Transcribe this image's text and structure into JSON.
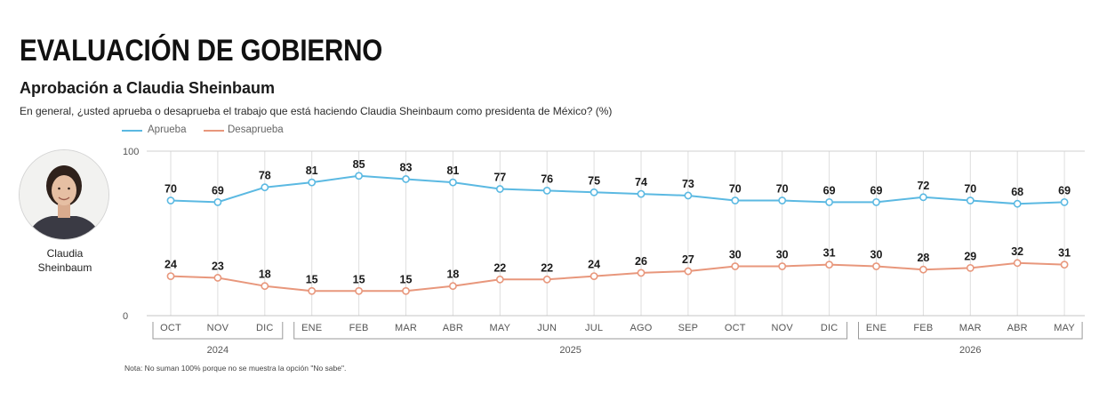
{
  "header": {
    "title": "EVALUACIÓN DE GOBIERNO",
    "subtitle": "Aprobación a Claudia Sheinbaum",
    "question": "En general, ¿usted aprueba o desaprueba el trabajo que está haciendo Claudia Sheinbaum como presidenta de México? (%)"
  },
  "portrait": {
    "caption_line1": "Claudia",
    "caption_line2": "Sheinbaum"
  },
  "chart_data": {
    "type": "line",
    "xlabel": "",
    "ylabel": "",
    "ylim": [
      0,
      100
    ],
    "yticks": [
      0,
      100
    ],
    "grid": true,
    "legend_position": "top-left",
    "categories": [
      "OCT",
      "NOV",
      "DIC",
      "ENE",
      "FEB",
      "MAR",
      "ABR",
      "MAY",
      "JUN",
      "JUL",
      "AGO",
      "SEP",
      "OCT",
      "NOV",
      "DIC",
      "ENE",
      "FEB",
      "MAR",
      "ABR",
      "MAY"
    ],
    "year_groups": [
      {
        "label": "2024",
        "first_index": 0,
        "last_index": 2
      },
      {
        "label": "2025",
        "first_index": 3,
        "last_index": 14
      },
      {
        "label": "2026",
        "first_index": 15,
        "last_index": 19
      }
    ],
    "series": [
      {
        "name": "Aprueba",
        "color": "#5bb9e2",
        "values": [
          70,
          69,
          78,
          81,
          85,
          83,
          81,
          77,
          76,
          75,
          74,
          73,
          70,
          70,
          69,
          69,
          72,
          70,
          68,
          69
        ]
      },
      {
        "name": "Desaprueba",
        "color": "#e8977c",
        "values": [
          24,
          23,
          18,
          15,
          15,
          15,
          18,
          22,
          22,
          24,
          26,
          27,
          30,
          30,
          31,
          30,
          28,
          29,
          32,
          31
        ]
      }
    ],
    "note": "Nota: No suman 100% porque no se muestra la opción \"No sabe\"."
  }
}
